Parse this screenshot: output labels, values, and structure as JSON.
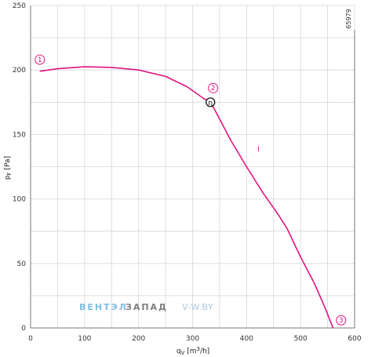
{
  "chart_data": {
    "type": "line",
    "xlabel": "qv [m³/h]",
    "ylabel": "pF [Pa]",
    "xlim": [
      0,
      600
    ],
    "ylim": [
      0,
      250
    ],
    "x_ticks": [
      0,
      100,
      200,
      300,
      400,
      500,
      600
    ],
    "y_ticks": [
      0,
      50,
      100,
      150,
      200,
      250
    ],
    "grid": true,
    "series": [
      {
        "color": "#e0147e",
        "points": [
          [
            17,
            199
          ],
          [
            50,
            201
          ],
          [
            100,
            202.5
          ],
          [
            150,
            202
          ],
          [
            200,
            200
          ],
          [
            250,
            195
          ],
          [
            290,
            187
          ],
          [
            310,
            181
          ],
          [
            320,
            178
          ],
          [
            330,
            176
          ],
          [
            340,
            170
          ],
          [
            350,
            162
          ],
          [
            360,
            154
          ],
          [
            370,
            146
          ],
          [
            400,
            125
          ],
          [
            430,
            105
          ],
          [
            450,
            93
          ],
          [
            460,
            87
          ],
          [
            475,
            77
          ],
          [
            500,
            55
          ],
          [
            525,
            35
          ],
          [
            545,
            16
          ],
          [
            560,
            0
          ]
        ]
      }
    ],
    "markers": [
      {
        "label": "1",
        "x": 17,
        "y": 208
      },
      {
        "label": "2",
        "x": 338,
        "y": 186
      },
      {
        "label": "3",
        "x": 575,
        "y": 6
      }
    ],
    "operating_point": {
      "label": "η",
      "x": 333,
      "y": 175
    },
    "annotations": [
      {
        "text": "I",
        "x": 422,
        "y": 137
      }
    ]
  },
  "side_id": "65979",
  "watermark": {
    "part1": "ВЕНТЭЛ",
    "part2": "ЗАПАД",
    "part3": "V-W.BY",
    "color_blue": "#7fbfe6",
    "color_grey": "#7d7d7d",
    "color_light": "#a9c7de"
  },
  "colors": {
    "curve": "#e0147e",
    "grid": "#d6d6d6",
    "frame": "#777777"
  }
}
